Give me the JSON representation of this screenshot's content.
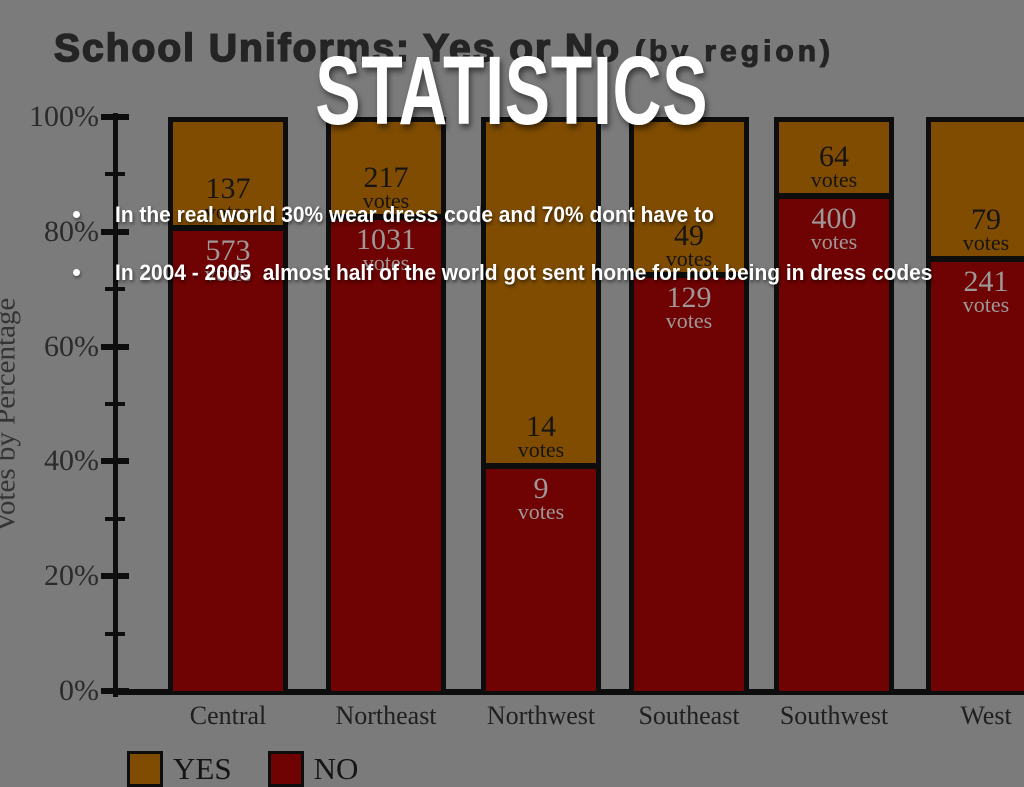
{
  "slide": {
    "headline": "STATISTICS",
    "bullets": [
      "In the real world 30% wear dress code and 70% dont have to",
      "In 2004 - 2005  almost half of the world got sent home for not being in dress codes"
    ]
  },
  "chart_data": {
    "type": "bar",
    "variant": "100-percent-stacked-column",
    "title": "School Uniforms: Yes or No",
    "title_suffix": "(by region)",
    "ylabel": "Votes by Percentage",
    "unit": "votes",
    "categories": [
      "Central",
      "Northeast",
      "Northwest",
      "Southeast",
      "Southwest",
      "West"
    ],
    "series": [
      {
        "name": "YES",
        "color": "#7f4c02",
        "values": [
          137,
          217,
          14,
          49,
          64,
          79
        ]
      },
      {
        "name": "NO",
        "color": "#6f0303",
        "values": [
          573,
          1031,
          9,
          129,
          400,
          241
        ]
      }
    ],
    "ytick_labels": [
      "0%",
      "20%",
      "40%",
      "60%",
      "80%",
      "100%"
    ],
    "ylim": [
      0,
      100
    ],
    "grid": false,
    "legend": {
      "position": "bottom-left"
    }
  },
  "colors": {
    "background": "#7b7b7b",
    "axis": "#0d0d0d",
    "yes_fill": "#7f4c02",
    "no_fill": "#6f0303",
    "chart_text": "#262626",
    "no_label_text": "#9e9898",
    "overlay_text": "#ffffff"
  }
}
